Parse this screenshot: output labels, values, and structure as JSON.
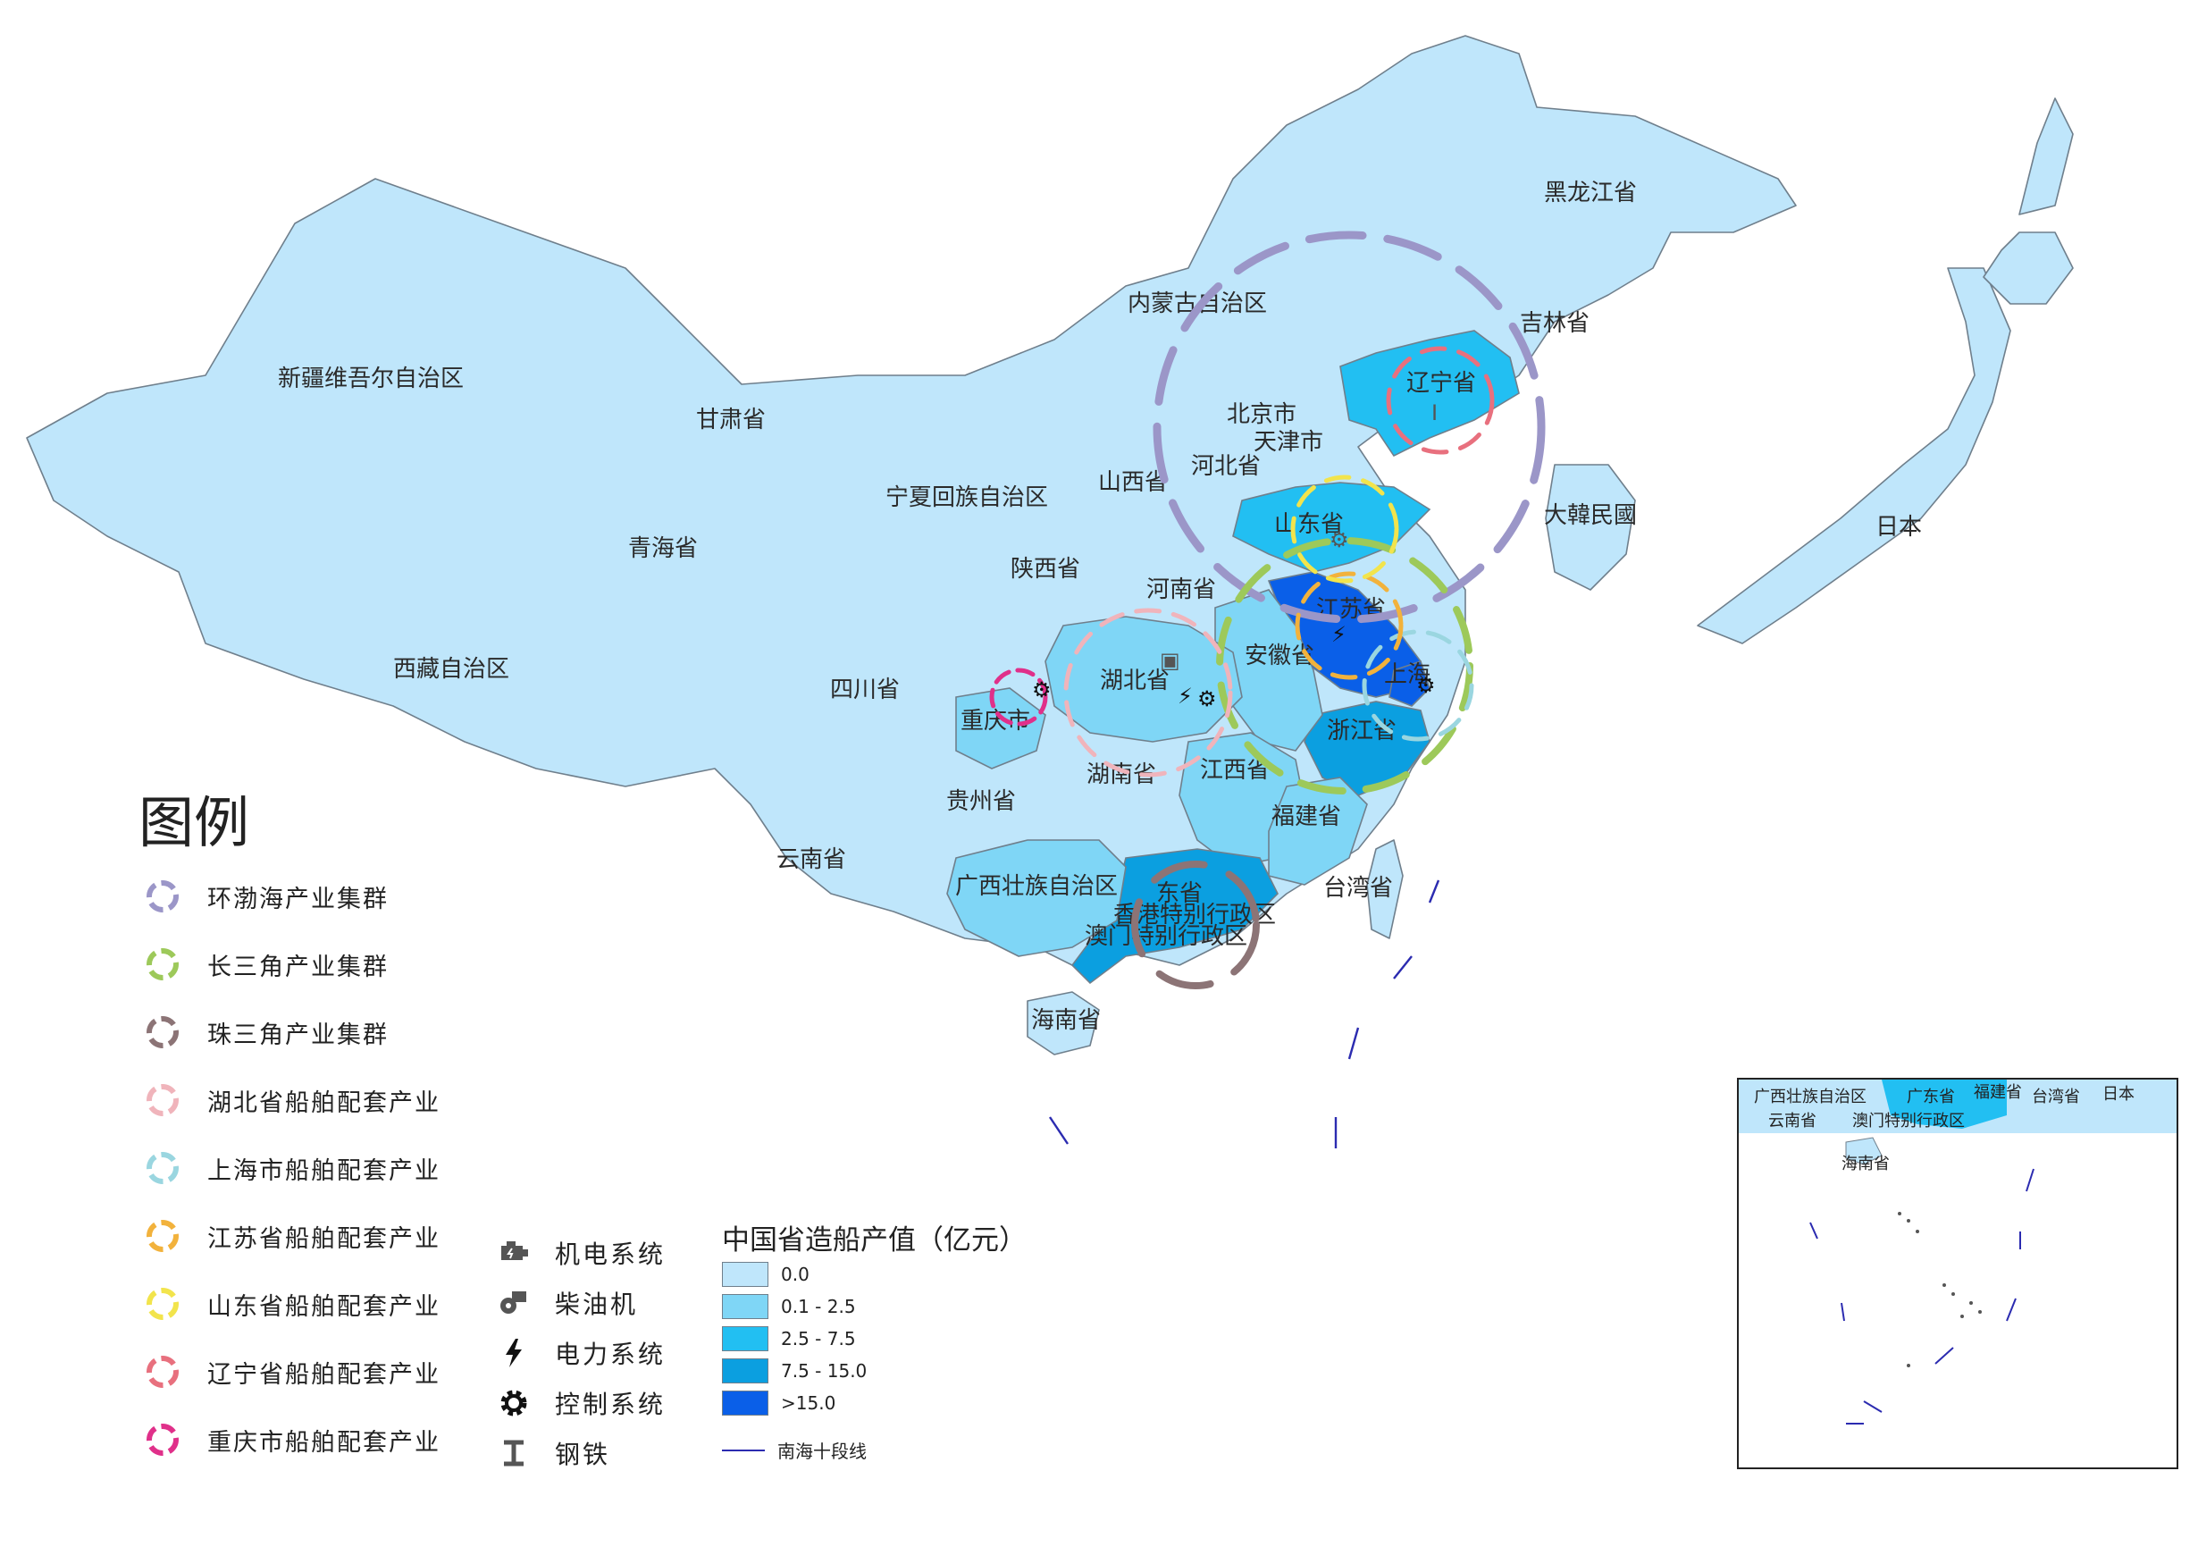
{
  "legend": {
    "title": "图例",
    "clusters": [
      {
        "label": "环渤海产业集群",
        "color": "#9b96c8"
      },
      {
        "label": "长三角产业集群",
        "color": "#9dc95a"
      },
      {
        "label": "珠三角产业集群",
        "color": "#8c7476"
      },
      {
        "label": "湖北省船舶配套产业",
        "color": "#f0b4bb"
      },
      {
        "label": "上海市船舶配套产业",
        "color": "#9ad6e0"
      },
      {
        "label": "江苏省船舶配套产业",
        "color": "#f2b23c"
      },
      {
        "label": "山东省船舶配套产业",
        "color": "#f2e44c"
      },
      {
        "label": "辽宁省船舶配套产业",
        "color": "#e8707e"
      },
      {
        "label": "重庆市船舶配套产业",
        "color": "#e0308a"
      }
    ],
    "icons": [
      {
        "label": "机电系统",
        "icon": "engine-icon"
      },
      {
        "label": "柴油机",
        "icon": "diesel-engine-icon"
      },
      {
        "label": "电力系统",
        "icon": "lightning-bolt-icon"
      },
      {
        "label": "控制系统",
        "icon": "gear-icon"
      },
      {
        "label": "钢铁",
        "icon": "i-beam-icon"
      }
    ],
    "value_title": "中国省造船产值（亿元）",
    "value_classes": [
      {
        "label": "0.0",
        "color": "#bfe6fb"
      },
      {
        "label": "0.1 - 2.5",
        "color": "#7fd6f6"
      },
      {
        "label": "2.5 - 7.5",
        "color": "#22bff2"
      },
      {
        "label": "7.5 - 15.0",
        "color": "#0b9fe0"
      },
      {
        "label": ">15.0",
        "color": "#0a5fe8"
      }
    ],
    "nine_dash_label": "南海十段线"
  },
  "labels": {
    "xinjiang": "新疆维吾尔自治区",
    "xizang": "西藏自治区",
    "qinghai": "青海省",
    "gansu": "甘肃省",
    "neimenggu": "内蒙古自治区",
    "heilongjiang": "黑龙江省",
    "jilin": "吉林省",
    "liaoning": "辽宁省",
    "beijing": "北京市",
    "tianjin": "天津市",
    "hebei": "河北省",
    "shanxi": "山西省",
    "ningxia": "宁夏回族自治区",
    "shaanxi": "陕西省",
    "henan": "河南省",
    "shandong": "山东省",
    "jiangsu": "江苏省",
    "anhui": "安徽省",
    "shanghai": "上海",
    "zhejiang": "浙江省",
    "hubei": "湖北省",
    "sichuan": "四川省",
    "chongqing": "重庆市",
    "guizhou": "贵州省",
    "hunan": "湖南省",
    "jiangxi": "江西省",
    "fujian": "福建省",
    "yunnan": "云南省",
    "guangxi": "广西壮族自治区",
    "guangdong": "东省",
    "hongkong": "香港特别行政区",
    "macau": "澳门特别行政区",
    "taiwan": "台湾省",
    "hainan": "海南省",
    "korea": "大韓民國",
    "japan": "日本"
  },
  "inset": {
    "guangxi": "广西壮族自治区",
    "guangdong": "广东省",
    "fujian": "福建省",
    "taiwan": "台湾省",
    "japan": "日本",
    "yunnan": "云南省",
    "macau": "澳门特别行政区",
    "hainan": "海南省"
  }
}
